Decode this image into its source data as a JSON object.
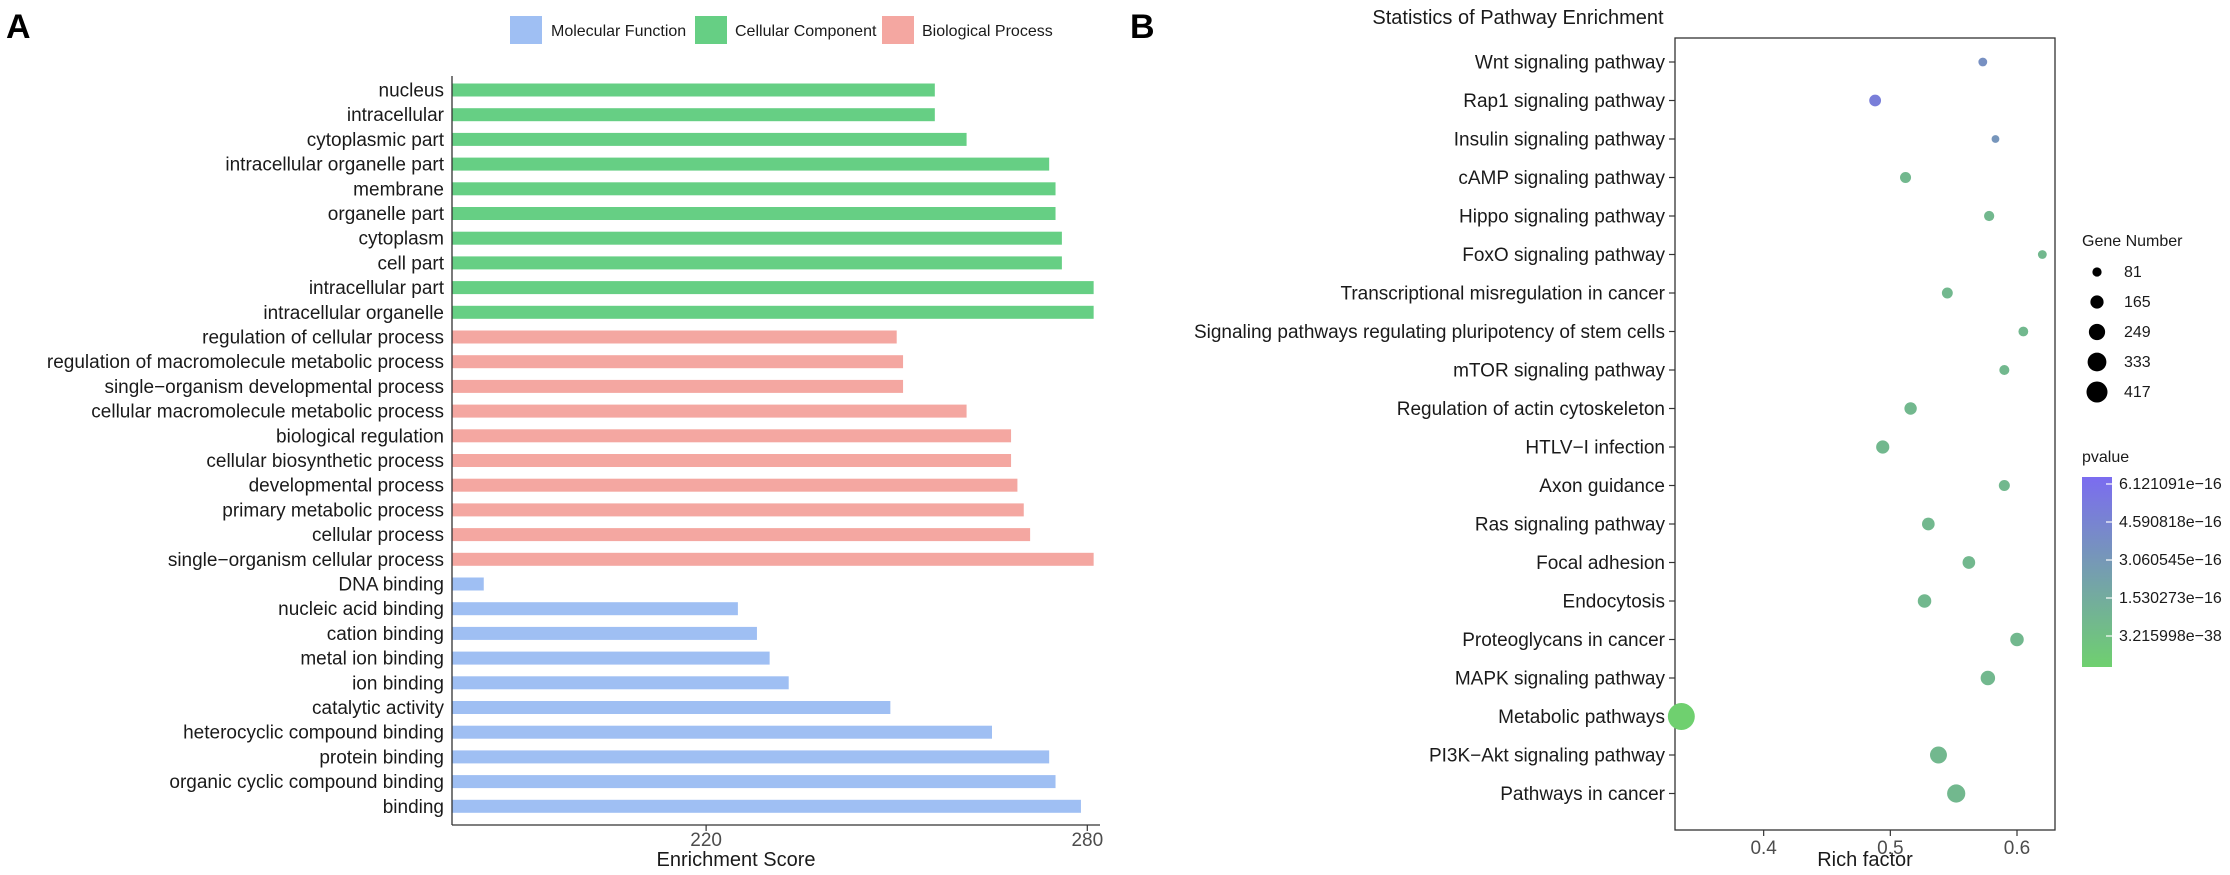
{
  "chart_data": [
    {
      "panel": "A",
      "type": "bar",
      "orientation": "horizontal",
      "title": "",
      "xlabel": "Enrichment Score",
      "ylabel": "",
      "xlim": [
        180,
        282
      ],
      "xticks": [
        220,
        280
      ],
      "legend": {
        "placement": "top",
        "items": [
          {
            "label": "Molecular Function",
            "color": "#9fbff3"
          },
          {
            "label": "Cellular Component",
            "color": "#66cf84"
          },
          {
            "label": "Biological Process",
            "color": "#f4a7a1"
          }
        ]
      },
      "categories": [
        {
          "label": "nucleus",
          "value": 256,
          "group": "Cellular Component"
        },
        {
          "label": "intracellular",
          "value": 256,
          "group": "Cellular Component"
        },
        {
          "label": "cytoplasmic part",
          "value": 261,
          "group": "Cellular Component"
        },
        {
          "label": "intracellular organelle part",
          "value": 274,
          "group": "Cellular Component"
        },
        {
          "label": "membrane",
          "value": 275,
          "group": "Cellular Component"
        },
        {
          "label": "organelle part",
          "value": 275,
          "group": "Cellular Component"
        },
        {
          "label": "cytoplasm",
          "value": 276,
          "group": "Cellular Component"
        },
        {
          "label": "cell part",
          "value": 276,
          "group": "Cellular Component"
        },
        {
          "label": "intracellular part",
          "value": 281,
          "group": "Cellular Component"
        },
        {
          "label": "intracellular organelle",
          "value": 281,
          "group": "Cellular Component"
        },
        {
          "label": "regulation of cellular process",
          "value": 250,
          "group": "Biological Process"
        },
        {
          "label": "regulation of macromolecule metabolic process",
          "value": 251,
          "group": "Biological Process"
        },
        {
          "label": "single−organism developmental process",
          "value": 251,
          "group": "Biological Process"
        },
        {
          "label": "cellular macromolecule metabolic process",
          "value": 261,
          "group": "Biological Process"
        },
        {
          "label": "biological regulation",
          "value": 268,
          "group": "Biological Process"
        },
        {
          "label": "cellular biosynthetic process",
          "value": 268,
          "group": "Biological Process"
        },
        {
          "label": "developmental process",
          "value": 269,
          "group": "Biological Process"
        },
        {
          "label": "primary metabolic process",
          "value": 270,
          "group": "Biological Process"
        },
        {
          "label": "cellular process",
          "value": 271,
          "group": "Biological Process"
        },
        {
          "label": "single−organism cellular process",
          "value": 281,
          "group": "Biological Process"
        },
        {
          "label": "DNA binding",
          "value": 185,
          "group": "Molecular Function"
        },
        {
          "label": "nucleic acid binding",
          "value": 225,
          "group": "Molecular Function"
        },
        {
          "label": "cation binding",
          "value": 228,
          "group": "Molecular Function"
        },
        {
          "label": "metal ion binding",
          "value": 230,
          "group": "Molecular Function"
        },
        {
          "label": "ion binding",
          "value": 233,
          "group": "Molecular Function"
        },
        {
          "label": "catalytic activity",
          "value": 249,
          "group": "Molecular Function"
        },
        {
          "label": "heterocyclic compound binding",
          "value": 265,
          "group": "Molecular Function"
        },
        {
          "label": "protein binding",
          "value": 274,
          "group": "Molecular Function"
        },
        {
          "label": "organic cyclic compound binding",
          "value": 275,
          "group": "Molecular Function"
        },
        {
          "label": "binding",
          "value": 279,
          "group": "Molecular Function"
        }
      ]
    },
    {
      "panel": "B",
      "type": "scatter",
      "title": "Statistics of Pathway Enrichment",
      "xlabel": "Rich factor",
      "ylabel": "",
      "xlim": [
        0.33,
        0.63
      ],
      "xticks": [
        0.4,
        0.5,
        0.6
      ],
      "xtick_labels": [
        "0.4",
        "0.5",
        "0.6"
      ],
      "size_legend": {
        "title": "Gene Number",
        "values": [
          81,
          165,
          249,
          333,
          417
        ],
        "labels": [
          "81",
          "165",
          "249",
          "333",
          "417"
        ]
      },
      "color_legend": {
        "title": "pvalue",
        "labels": [
          "6.121091e−16",
          "4.590818e−16",
          "3.060545e−16",
          "1.530273e−16",
          "3.215998e−38"
        ],
        "color_high": "#7b6cf0",
        "color_low": "#6fd06f"
      },
      "points": [
        {
          "label": "Wnt signaling pathway",
          "x": 0.573,
          "genes": 45,
          "pvalue": 5.2e-16
        },
        {
          "label": "Rap1 signaling pathway",
          "x": 0.488,
          "genes": 80,
          "pvalue": 6.1e-16
        },
        {
          "label": "Insulin signaling pathway",
          "x": 0.583,
          "genes": 35,
          "pvalue": 4.3e-16
        },
        {
          "label": "cAMP signaling pathway",
          "x": 0.512,
          "genes": 70,
          "pvalue": 1e-20
        },
        {
          "label": "Hippo signaling pathway",
          "x": 0.578,
          "genes": 60,
          "pvalue": 1e-20
        },
        {
          "label": "FoxO signaling pathway",
          "x": 0.62,
          "genes": 45,
          "pvalue": 1e-20
        },
        {
          "label": "Transcriptional misregulation in cancer",
          "x": 0.545,
          "genes": 68,
          "pvalue": 1e-20
        },
        {
          "label": "Signaling pathways regulating pluripotency of stem cells",
          "x": 0.605,
          "genes": 55,
          "pvalue": 1e-20
        },
        {
          "label": "mTOR signaling pathway",
          "x": 0.59,
          "genes": 58,
          "pvalue": 1e-20
        },
        {
          "label": "Regulation of actin cytoskeleton",
          "x": 0.516,
          "genes": 88,
          "pvalue": 1e-20
        },
        {
          "label": "HTLV−I infection",
          "x": 0.494,
          "genes": 100,
          "pvalue": 1e-20
        },
        {
          "label": "Axon guidance",
          "x": 0.59,
          "genes": 70,
          "pvalue": 1e-20
        },
        {
          "label": "Ras signaling pathway",
          "x": 0.53,
          "genes": 92,
          "pvalue": 1e-20
        },
        {
          "label": "Focal adhesion",
          "x": 0.562,
          "genes": 92,
          "pvalue": 1e-20
        },
        {
          "label": "Endocytosis",
          "x": 0.527,
          "genes": 105,
          "pvalue": 1e-20
        },
        {
          "label": "Proteoglycans in cancer",
          "x": 0.6,
          "genes": 105,
          "pvalue": 1e-20
        },
        {
          "label": "MAPK signaling pathway",
          "x": 0.577,
          "genes": 120,
          "pvalue": 1e-20
        },
        {
          "label": "Metabolic pathways",
          "x": 0.335,
          "genes": 417,
          "pvalue": 3.2e-38
        },
        {
          "label": "PI3K−Akt signaling pathway",
          "x": 0.538,
          "genes": 165,
          "pvalue": 1e-20
        },
        {
          "label": "Pathways in cancer",
          "x": 0.552,
          "genes": 190,
          "pvalue": 1e-20
        }
      ]
    }
  ]
}
